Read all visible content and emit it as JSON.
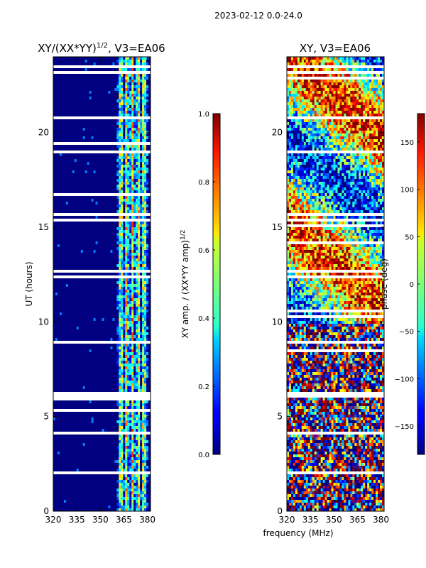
{
  "suptitle": "2023-02-12 0.0-24.0",
  "chart_data": [
    {
      "type": "heatmap",
      "title": "XY/(XX*YY)^1/2, V3=EA06",
      "title_main": "XY/(XX*YY)",
      "title_sup": "1/2",
      "title_tail": ", V3=EA06",
      "xlabel": "",
      "ylabel": "UT (hours)",
      "xlim": [
        320,
        382
      ],
      "ylim": [
        0,
        24
      ],
      "xticks": [
        "320",
        "335",
        "350",
        "365",
        "380"
      ],
      "xtick_values": [
        320,
        335,
        350,
        365,
        380
      ],
      "yticks": [
        "0",
        "5",
        "10",
        "15",
        "20"
      ],
      "ytick_values": [
        0,
        5,
        10,
        15,
        20
      ],
      "colorbar": {
        "label": "XY amp. / (XX*YY amp)^1/2",
        "label_main": "XY amp. / (XX*YY amp)",
        "label_sup": "1/2",
        "range": [
          0.0,
          1.0
        ],
        "ticks": [
          "0.0",
          "0.2",
          "0.4",
          "0.6",
          "0.8",
          "1.0"
        ],
        "tick_values": [
          0.0,
          0.2,
          0.4,
          0.6,
          0.8,
          1.0
        ]
      },
      "gap_hours": [
        12.5,
        12.8,
        6.1,
        6.3,
        15.5,
        15.7,
        23.5,
        23.2,
        19.1,
        9.0,
        4.2,
        2.1
      ],
      "active_band_mhz": [
        360,
        380
      ]
    },
    {
      "type": "heatmap",
      "title": "XY, V3=EA06",
      "xlabel": "frequency (MHz)",
      "ylabel": "",
      "xlim": [
        320,
        382
      ],
      "ylim": [
        0,
        24
      ],
      "xticks": [
        "320",
        "335",
        "350",
        "365",
        "380"
      ],
      "xtick_values": [
        320,
        335,
        350,
        365,
        380
      ],
      "yticks": [
        "0",
        "5",
        "10",
        "15",
        "20"
      ],
      "ytick_values": [
        0,
        5,
        10,
        15,
        20
      ],
      "colorbar": {
        "label": "phase (deg)",
        "range": [
          -180,
          180
        ],
        "ticks": [
          "−150",
          "−100",
          "−50",
          "0",
          "50",
          "100",
          "150"
        ],
        "tick_values": [
          -150,
          -100,
          -50,
          0,
          50,
          100,
          150
        ]
      },
      "gap_hours": [
        12.5,
        12.8,
        6.1,
        6.3,
        15.5,
        15.7,
        23.5,
        23.2,
        19.1,
        9.0,
        4.2,
        2.1
      ]
    }
  ]
}
